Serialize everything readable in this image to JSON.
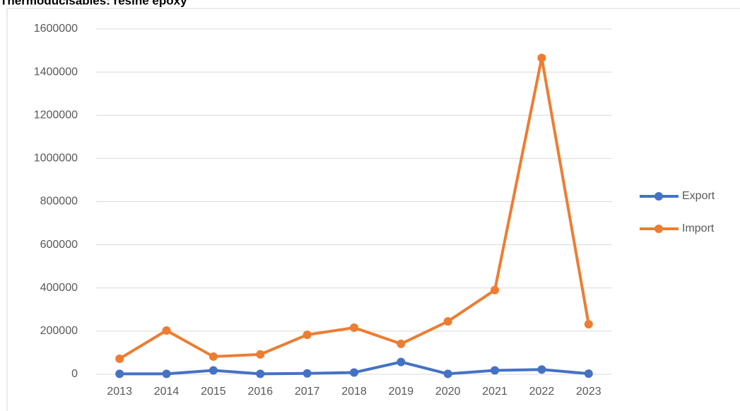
{
  "chart_data": {
    "type": "line",
    "title": "Thermoducisables: resine epoxy",
    "categories": [
      "2013",
      "2014",
      "2015",
      "2016",
      "2017",
      "2018",
      "2019",
      "2020",
      "2021",
      "2022",
      "2023"
    ],
    "series": [
      {
        "name": "Export",
        "color": "#4472c4",
        "values": [
          2000,
          2000,
          18000,
          2000,
          4000,
          8000,
          57000,
          2000,
          18000,
          22000,
          3000
        ]
      },
      {
        "name": "Import",
        "color": "#ed7d31",
        "values": [
          72000,
          203000,
          82000,
          92000,
          183000,
          216000,
          141000,
          245000,
          390000,
          1466000,
          232000
        ]
      }
    ],
    "ylim": [
      0,
      1600000
    ],
    "yticks": [
      0,
      200000,
      400000,
      600000,
      800000,
      1000000,
      1200000,
      1400000,
      1600000
    ],
    "grid": true,
    "legend": "right"
  }
}
